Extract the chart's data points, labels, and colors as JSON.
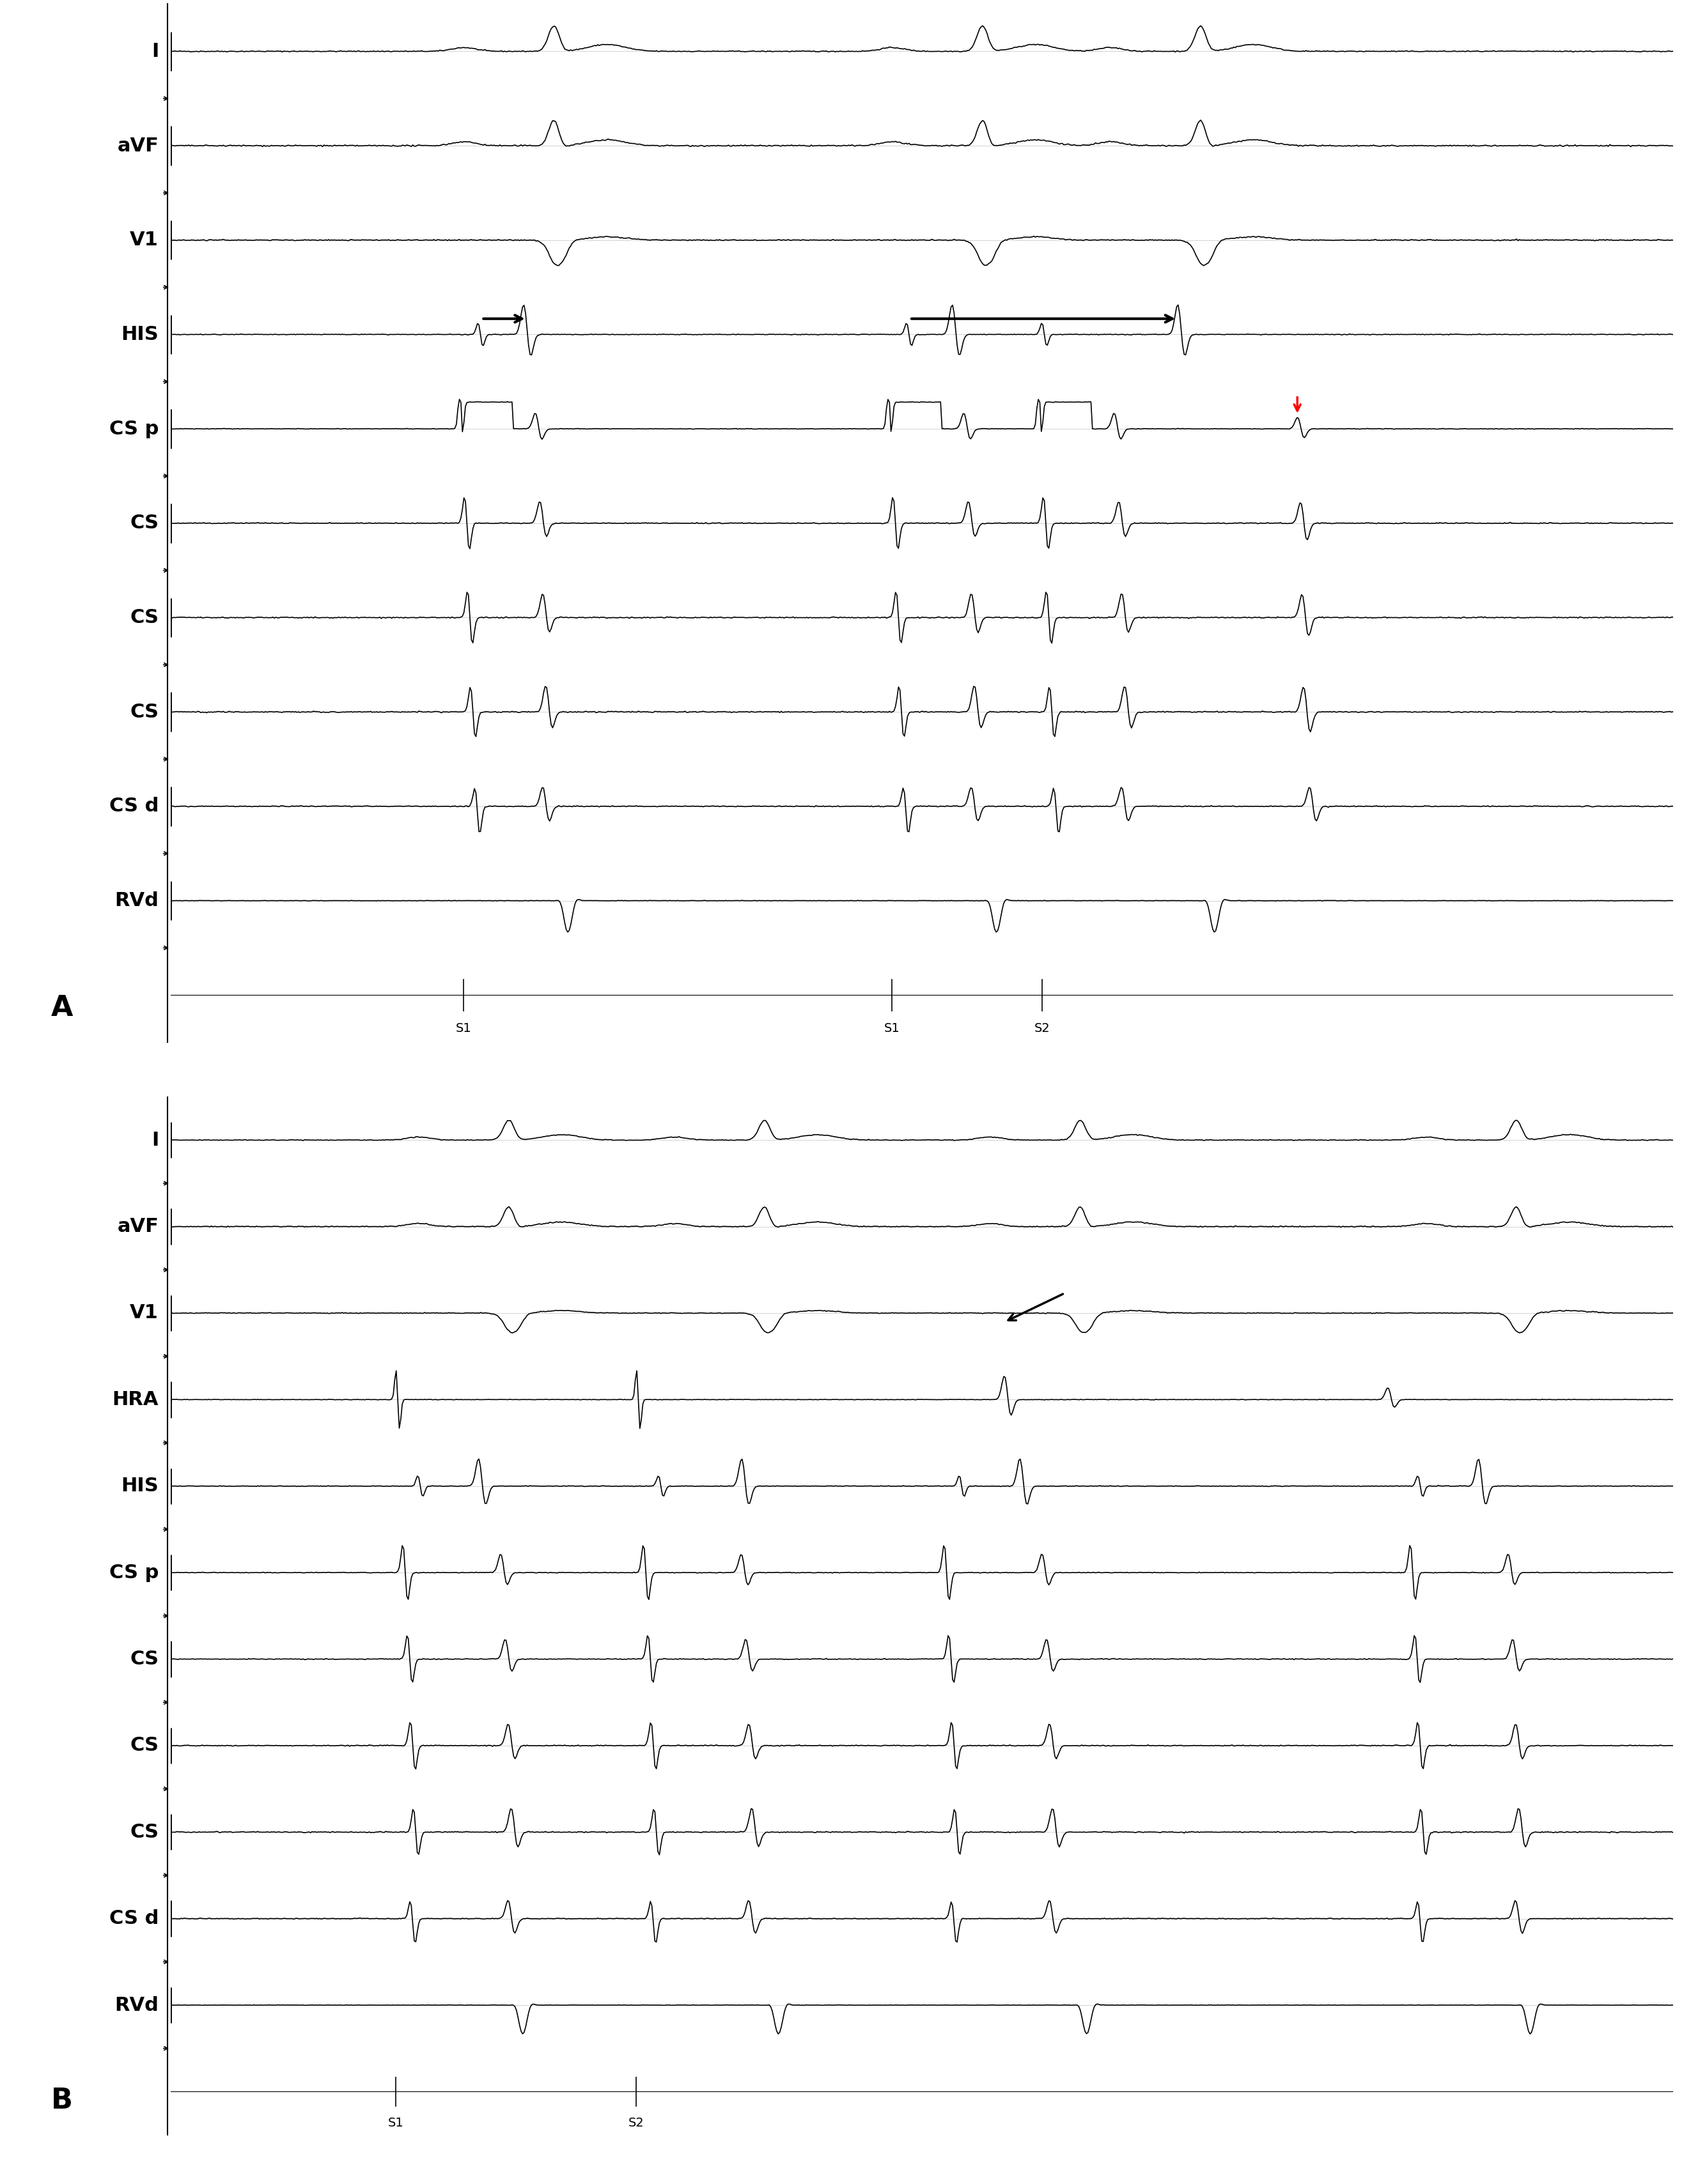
{
  "fig_width": 26.7,
  "fig_height": 34.18,
  "background_color": "#ffffff",
  "line_color": "#000000",
  "label_fontsize": 22,
  "annotation_fontsize": 18,
  "panel_A_label": "A",
  "panel_B_label": "B",
  "panel_A_channels": [
    "I",
    "aVF",
    "V1",
    "HIS",
    "CS p",
    "CS",
    "CS",
    "CS",
    "CS d",
    "RVd",
    ""
  ],
  "panel_B_channels": [
    "I",
    "aVF",
    "V1",
    "HRA",
    "HIS",
    "CS p",
    "CS",
    "CS",
    "CS",
    "CS d",
    "RVd",
    ""
  ],
  "s1_label": "S1",
  "s2_label": "S2"
}
